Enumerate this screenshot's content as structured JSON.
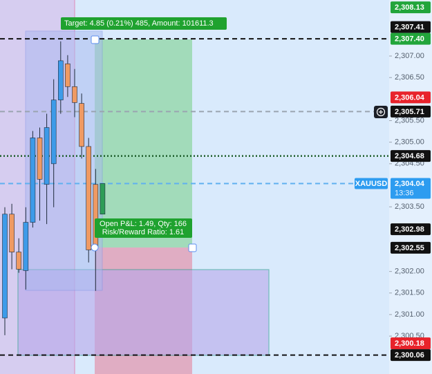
{
  "chart_data": {
    "type": "candlestick",
    "symbol": "XAUUSD",
    "countdown": "13:36",
    "categories": [
      null,
      null,
      null,
      null,
      null,
      null,
      null,
      null,
      null,
      null,
      null,
      null,
      null,
      null,
      null
    ],
    "open": [
      2300.92,
      2303.33,
      2302.45,
      2302.02,
      2303.14,
      2305.1,
      2304.02,
      2304.5,
      2305.98,
      2306.82,
      2306.29,
      2305.9,
      2304.9,
      2304.02,
      2303.33
    ],
    "high": [
      2303.49,
      2303.57,
      2302.77,
      2303.49,
      2305.26,
      2305.34,
      2305.66,
      2306.46,
      2307.34,
      2307.02,
      2306.7,
      2306.13,
      2305.1,
      2304.38,
      2304.04
    ],
    "low": [
      2300.52,
      2302.05,
      2301.97,
      2301.58,
      2303.02,
      2303.18,
      2303.1,
      2303.49,
      2305.66,
      2306.05,
      2305.58,
      2304.62,
      2302.21,
      2301.55,
      2303.33
    ],
    "close": [
      2303.33,
      2302.45,
      2302.05,
      2303.14,
      2305.1,
      2304.14,
      2305.34,
      2305.98,
      2306.89,
      2306.29,
      2305.92,
      2304.9,
      2302.5,
      2302.57,
      2304.04
    ],
    "up_color": "#3d9be9",
    "down_color": "#ef9a63",
    "last_color": "#2e9d57",
    "ylim": [
      2299.62,
      2308.3
    ],
    "yticks": [
      {
        "value": 2307.0,
        "label": "2,307.00"
      },
      {
        "value": 2306.5,
        "label": "2,306.50"
      },
      {
        "value": 2305.5,
        "label": "2,305.50"
      },
      {
        "value": 2305.0,
        "label": "2,305.00"
      },
      {
        "value": 2304.5,
        "label": "2,304.50"
      },
      {
        "value": 2303.5,
        "label": "2,303.50"
      },
      {
        "value": 2302.0,
        "label": "2,302.00"
      },
      {
        "value": 2301.5,
        "label": "2,301.50"
      },
      {
        "value": 2301.0,
        "label": "2,301.00"
      },
      {
        "value": 2300.5,
        "label": "2,300.50"
      }
    ],
    "price_labels": [
      {
        "value": 2308.13,
        "label": "2,308.13",
        "color": "#22a53b"
      },
      {
        "value": 2307.41,
        "label": "2,307.41",
        "color": "#111111"
      },
      {
        "value": 2307.4,
        "label": "2,307.40",
        "color": "#22a53b",
        "line": "dashed",
        "line_color": "#111111"
      },
      {
        "value": 2306.04,
        "label": "2,306.04",
        "color": "#e8232b"
      },
      {
        "value": 2305.71,
        "label": "2,305.71",
        "color": "#111111",
        "line": "dashed",
        "line_color": "#9aa4b0"
      },
      {
        "value": 2304.68,
        "label": "2,304.68",
        "color": "#111111",
        "line": "dotted",
        "line_color": "#1d5e2a"
      },
      {
        "value": 2302.98,
        "label": "2,302.98",
        "color": "#111111"
      },
      {
        "value": 2302.55,
        "label": "2,302.55",
        "color": "#111111"
      },
      {
        "value": 2300.18,
        "label": "2,300.18",
        "color": "#e8232b"
      },
      {
        "value": 2300.06,
        "label": "2,300.06",
        "color": "#111111",
        "line": "dashed",
        "line_color": "#111111"
      }
    ],
    "last_price": {
      "value": 2304.04,
      "label": "2,304.04",
      "color": "#2d9cf0",
      "line": "dashed",
      "line_color": "#5fb0f0"
    },
    "annotations": [
      "Target: 4.85 (0.21%) 485, Amount: 101611.3",
      "Open P&L: 1.49, Qty: 166",
      "Risk/Reward Ratio: 1.61"
    ]
  }
}
